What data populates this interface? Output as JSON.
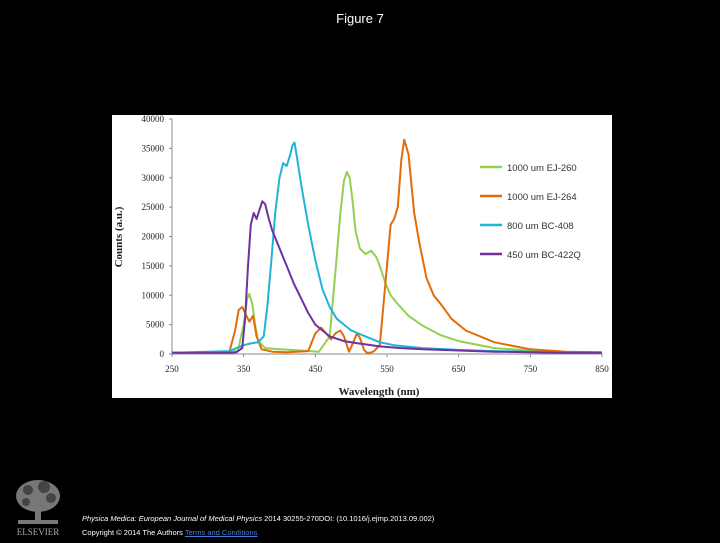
{
  "figure_title": "Figure 7",
  "citation": {
    "journal": "Physica Medica: European Journal of Medical Physics",
    "rest": " 2014 30255-270DOI: (10.1016/j.ejmp.2013.09.002)"
  },
  "copyright": {
    "text": "Copyright © 2014 The Authors",
    "license_link": "Terms and Conditions"
  },
  "logo": {
    "label": "ELSEVIER",
    "icon": "elsevier-tree-icon"
  },
  "chart_data": {
    "type": "line",
    "title": "",
    "xlabel": "Wavelength (nm)",
    "ylabel": "Counts (a.u.)",
    "xlim": [
      250,
      850
    ],
    "ylim": [
      0,
      40000
    ],
    "xticks": [
      "250",
      "350",
      "450",
      "550",
      "650",
      "750",
      "850"
    ],
    "yticks": [
      "0",
      "5000",
      "10000",
      "15000",
      "20000",
      "25000",
      "30000",
      "35000",
      "40000"
    ],
    "grid": false,
    "legend": "right",
    "series": [
      {
        "name": "1000 um EJ-260",
        "color": "#92d050",
        "x": [
          250,
          330,
          342,
          350,
          355,
          358,
          362,
          366,
          370,
          380,
          400,
          430,
          455,
          470,
          478,
          485,
          490,
          494,
          498,
          502,
          506,
          512,
          520,
          528,
          535,
          540,
          548,
          555,
          565,
          580,
          600,
          625,
          650,
          700,
          750,
          800,
          850
        ],
        "y": [
          200,
          200,
          600,
          5000,
          9500,
          10200,
          8500,
          5000,
          2200,
          1000,
          800,
          600,
          400,
          3000,
          14000,
          24000,
          29500,
          31000,
          30000,
          26000,
          21000,
          18000,
          17000,
          17600,
          16500,
          15000,
          12000,
          10000,
          8500,
          6500,
          4800,
          3200,
          2200,
          1000,
          600,
          300,
          200
        ]
      },
      {
        "name": "1000 um EJ-264",
        "color": "#e36c0a",
        "x": [
          250,
          330,
          338,
          343,
          348,
          352,
          358,
          363,
          368,
          375,
          390,
          410,
          440,
          450,
          458,
          465,
          472,
          478,
          485,
          490,
          497,
          503,
          508,
          512,
          518,
          522,
          527,
          532,
          540,
          550,
          555,
          560,
          565,
          570,
          574,
          580,
          588,
          595,
          605,
          615,
          625,
          640,
          660,
          700,
          750,
          800,
          850
        ],
        "y": [
          200,
          300,
          4000,
          7500,
          8000,
          7000,
          5500,
          6500,
          3000,
          800,
          400,
          300,
          500,
          3500,
          4500,
          3500,
          2500,
          3500,
          4000,
          3000,
          400,
          2000,
          3500,
          2800,
          700,
          200,
          200,
          500,
          1500,
          15000,
          22000,
          23000,
          25000,
          33000,
          36500,
          34000,
          24000,
          19000,
          13000,
          10000,
          8500,
          6000,
          4000,
          2000,
          800,
          400,
          300
        ]
      },
      {
        "name": "800 um BC-408",
        "color": "#1fb4d8",
        "x": [
          250,
          330,
          340,
          350,
          360,
          370,
          378,
          383,
          388,
          394,
          400,
          405,
          410,
          415,
          418,
          421,
          425,
          430,
          440,
          450,
          460,
          470,
          480,
          500,
          520,
          540,
          560,
          600,
          650,
          700,
          750,
          800,
          850
        ],
        "y": [
          200,
          500,
          1000,
          1500,
          1800,
          2000,
          3000,
          8000,
          15000,
          24000,
          30000,
          32500,
          32000,
          34000,
          35500,
          36000,
          33000,
          29000,
          22000,
          16000,
          11000,
          8000,
          6000,
          4000,
          3000,
          2000,
          1500,
          1000,
          700,
          500,
          400,
          300,
          200
        ]
      },
      {
        "name": "450 um BC-422Q",
        "color": "#7030a0",
        "x": [
          250,
          330,
          340,
          348,
          352,
          356,
          360,
          364,
          368,
          372,
          376,
          380,
          385,
          390,
          395,
          400,
          405,
          410,
          420,
          430,
          440,
          450,
          470,
          490,
          510,
          540,
          570,
          600,
          650,
          700,
          750,
          800,
          850
        ],
        "y": [
          200,
          200,
          300,
          1000,
          6000,
          15000,
          22000,
          24000,
          23000,
          24500,
          26000,
          25500,
          23000,
          21000,
          19500,
          18000,
          16500,
          15000,
          12000,
          9500,
          7000,
          5000,
          3000,
          2200,
          1800,
          1300,
          1000,
          800,
          600,
          400,
          300,
          200,
          200
        ]
      }
    ]
  }
}
